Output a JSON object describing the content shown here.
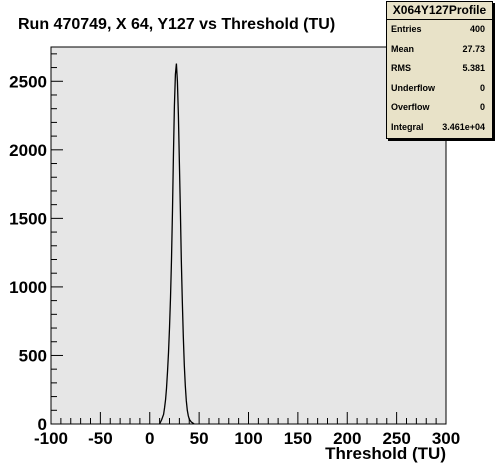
{
  "chart_data": {
    "type": "line",
    "title": "Run 470749, X 64, Y127 vs Threshold (TU)",
    "xlabel": "Threshold (TU)",
    "ylabel": "",
    "xlim": [
      -100,
      300
    ],
    "ylim": [
      0,
      2750
    ],
    "xticks": [
      "-100",
      "-50",
      "0",
      "50",
      "100",
      "150",
      "200",
      "250",
      "300"
    ],
    "yticks": [
      "0",
      "500",
      "1000",
      "1500",
      "2000",
      "2500"
    ],
    "grid": false,
    "x": [
      10,
      12,
      14,
      15,
      16,
      17,
      18,
      19,
      20,
      21,
      22,
      23,
      24,
      25,
      26,
      27,
      28,
      29,
      30,
      31,
      32,
      33,
      34,
      35,
      36,
      37,
      38,
      39,
      40,
      42,
      44,
      45
    ],
    "values": [
      0,
      30,
      70,
      120,
      180,
      260,
      380,
      520,
      700,
      920,
      1200,
      1560,
      1950,
      2320,
      2550,
      2630,
      2500,
      2250,
      1900,
      1550,
      1200,
      900,
      640,
      430,
      280,
      170,
      100,
      60,
      35,
      15,
      5,
      0
    ],
    "stats": {
      "title": "X064Y127Profile",
      "rows": [
        {
          "label": "Entries",
          "value": "400"
        },
        {
          "label": "Mean",
          "value": "27.73"
        },
        {
          "label": "RMS",
          "value": "5.381"
        },
        {
          "label": "Underflow",
          "value": "0"
        },
        {
          "label": "Overflow",
          "value": "0"
        },
        {
          "label": "Integral",
          "value": "3.461e+04"
        }
      ]
    }
  }
}
